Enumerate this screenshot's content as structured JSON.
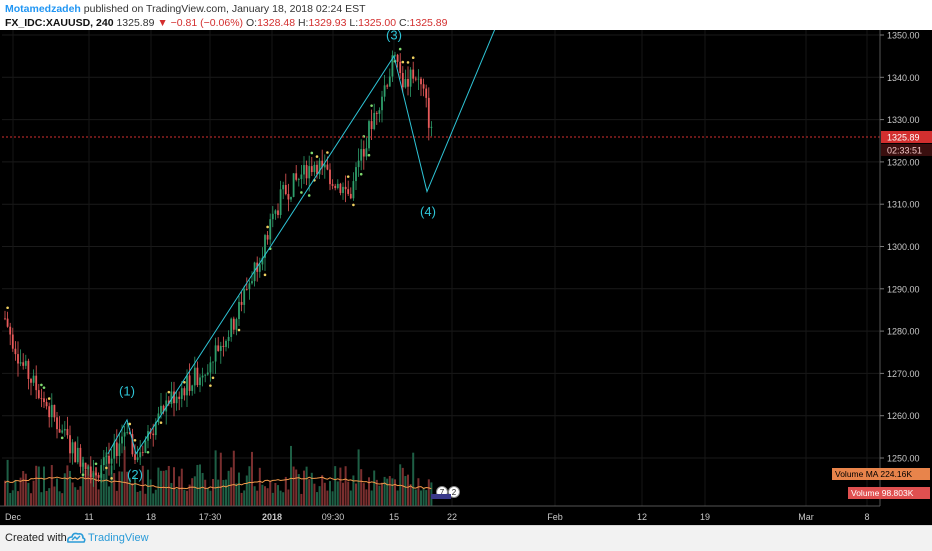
{
  "header": {
    "author": "Motamedzadeh",
    "published_text": "published on TradingView.com, January 18, 2018 02:24 EST",
    "symbol": "FX_IDC:XAUUSD, 240",
    "last": "1325.89",
    "change_arrow": "▼",
    "change": "−0.81 (−0.06%)",
    "o_label": "O:",
    "o_value": "1328.48",
    "h_label": "H:",
    "h_value": "1329.93",
    "l_label": "L:",
    "l_value": "1325.00",
    "c_label": "C:",
    "c_value": "1325.89"
  },
  "price_axis": {
    "ticks": [
      "1350.00",
      "1340.00",
      "1330.00",
      "1320.00",
      "1310.00",
      "1300.00",
      "1290.00",
      "1280.00",
      "1270.00",
      "1260.00",
      "1250.00"
    ],
    "last_price_label": "1325.89",
    "countdown_label": "02:33:51"
  },
  "time_axis": {
    "ticks": [
      "Dec",
      "11",
      "18",
      "17:30",
      "2018",
      "09:30",
      "15",
      "22",
      "Feb",
      "12",
      "19",
      "Mar",
      "8"
    ]
  },
  "wave_labels": [
    "(1)",
    "(2)",
    "(3)",
    "(4)"
  ],
  "volume": {
    "ma_label": "Volume MA",
    "ma_value": "224.16K",
    "label": "Volume",
    "value": "98.803K"
  },
  "event_badges": [
    "7",
    "2"
  ],
  "footer": {
    "created_with": "Created with",
    "brand": "TradingView",
    "logo_icon": "tradingview-cloud-icon"
  },
  "colors": {
    "background": "#000000",
    "up_candle": "#2e9e6b",
    "down_candle": "#e85a5a",
    "wave_line": "#2ec4d6",
    "last_price": "#d32f2f",
    "volume_ma": "#f2994a",
    "volume_ma_label_bg": "#e8844b",
    "volume_label_bg": "#e05050",
    "brand": "#2196f3"
  },
  "chart_data": {
    "type": "candlestick",
    "timeframe": "240",
    "x_axis": "Dec 2017 – Mar 2018",
    "ylim": [
      1245,
      1352
    ],
    "close_path": [
      [
        "Dec",
        1283
      ],
      [
        "Dec",
        1272
      ],
      [
        "Dec",
        1262
      ],
      [
        "Dec",
        1252
      ],
      [
        "11",
        1247
      ],
      [
        "11",
        1249
      ],
      [
        "(1)",
        1258
      ],
      [
        "(2)",
        1250
      ],
      [
        "18",
        1256
      ],
      [
        "18",
        1264
      ],
      [
        "17:30",
        1270
      ],
      [
        "17:30",
        1281
      ],
      [
        "2018",
        1297
      ],
      [
        "2018",
        1312
      ],
      [
        "09:30",
        1320
      ],
      [
        "09:30",
        1316
      ],
      [
        "09:30",
        1312
      ],
      [
        "15",
        1330
      ],
      [
        "(3)",
        1344
      ],
      [
        "15",
        1338
      ],
      [
        "15",
        1341
      ],
      [
        "15",
        1335
      ],
      [
        "now",
        1325.89
      ]
    ],
    "elliott_waves": [
      {
        "label": "(1)",
        "price": 1259
      },
      {
        "label": "(2)",
        "price": 1251
      },
      {
        "label": "(3)",
        "price": 1345
      },
      {
        "label": "(4)",
        "price": 1313
      }
    ],
    "last_price": 1325.89,
    "volume_ma": "224.16K",
    "volume_last": "98.803K"
  }
}
